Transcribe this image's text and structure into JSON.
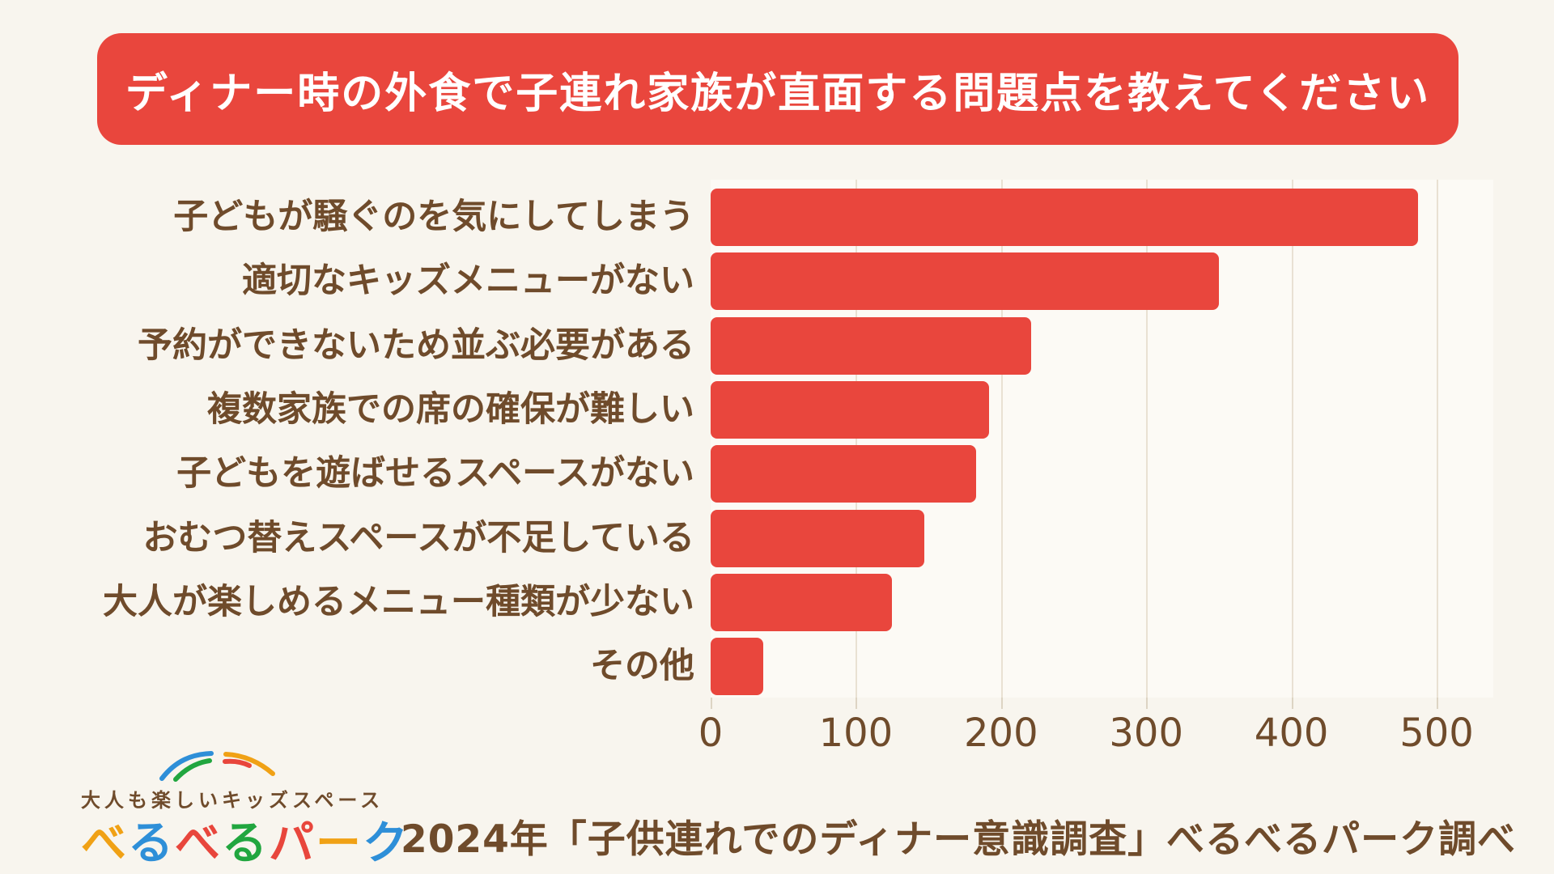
{
  "banner": {
    "title": "ディナー時の外食で子連れ家族が直面する問題点を教えてください",
    "bg_color": "#E9463D",
    "text_color": "#FFFFFF"
  },
  "chart_data": {
    "type": "bar",
    "orientation": "horizontal",
    "title": "ディナー時の外食で子連れ家族が直面する問題点を教えてください",
    "categories": [
      "子どもが騒ぐのを気にしてしまう",
      "適切なキッズメニューがない",
      "予約ができないため並ぶ必要がある",
      "複数家族での席の確保が難しい",
      "子どもを遊ばせるスペースがない",
      "おむつ替えスペースが不足している",
      "大人が楽しめるメニュー種類が少ない",
      "その他"
    ],
    "values": [
      487,
      350,
      221,
      192,
      183,
      147,
      125,
      36
    ],
    "x_ticks": [
      0,
      100,
      200,
      300,
      400,
      500
    ],
    "xlim": [
      0,
      500
    ],
    "xlabel": "",
    "ylabel": "",
    "grid": true,
    "legend": "none",
    "bar_color": "#E9463D",
    "label_color": "#6F4B2B",
    "tick_color": "#6F4B2B",
    "grid_color": "#E9E1D3"
  },
  "footer": {
    "source_note": "2024年「子供連れでのディナー意識調査」べるべるパーク調べ"
  },
  "logo": {
    "tagline": "大人も楽しいキッズスペース",
    "tagline_color": "#6F4B2B",
    "name": "べるべるパーク",
    "name_chars": [
      {
        "ch": "べ",
        "color": "#F0A115"
      },
      {
        "ch": "る",
        "color": "#2E8FD8"
      },
      {
        "ch": "べ",
        "color": "#E8463C"
      },
      {
        "ch": "る",
        "color": "#21A63F"
      },
      {
        "ch": "パ",
        "color": "#E8463C"
      },
      {
        "ch": "ー",
        "color": "#F0A115"
      },
      {
        "ch": "ク",
        "color": "#2E8FD8"
      }
    ],
    "arc_colors": [
      "#2E8FD8",
      "#21A63F",
      "#F0A115",
      "#E8463C"
    ]
  },
  "page": {
    "bg_color": "#F8F5EE",
    "plot_bg_color": "#FCFAF5"
  }
}
